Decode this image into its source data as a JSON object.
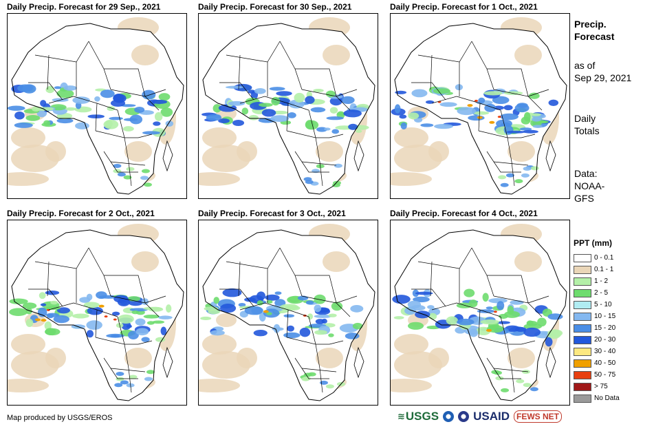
{
  "panels": [
    {
      "title": "Daily Precip. Forecast for 29 Sep., 2021",
      "variant": 0
    },
    {
      "title": "Daily Precip. Forecast for 30 Sep., 2021",
      "variant": 1
    },
    {
      "title": "Daily Precip. Forecast for 1 Oct., 2021",
      "variant": 2
    },
    {
      "title": "Daily Precip. Forecast for 2 Oct., 2021",
      "variant": 3
    },
    {
      "title": "Daily Precip. Forecast for 3 Oct., 2021",
      "variant": 4
    },
    {
      "title": "Daily Precip. Forecast for 4 Oct., 2021",
      "variant": 5
    }
  ],
  "sidebar": {
    "heading_line1": "Precip.",
    "heading_line2": "Forecast",
    "asof_line1": "as of",
    "asof_line2": "Sep 29, 2021",
    "totals_line1": "Daily",
    "totals_line2": "Totals",
    "data_line1": "Data:",
    "data_line2": "NOAA-",
    "data_line3": "GFS"
  },
  "legend": {
    "title": "PPT (mm)",
    "items": [
      {
        "label": "0 - 0.1",
        "color": "#ffffff"
      },
      {
        "label": "0.1 - 1",
        "color": "#ead6b8"
      },
      {
        "label": "1 - 2",
        "color": "#b4f0a8"
      },
      {
        "label": "2 - 5",
        "color": "#6edc6e"
      },
      {
        "label": "5 - 10",
        "color": "#b0ecf2"
      },
      {
        "label": "10 - 15",
        "color": "#84b8f0"
      },
      {
        "label": "15 - 20",
        "color": "#4a8ee6"
      },
      {
        "label": "20 - 30",
        "color": "#2258dc"
      },
      {
        "label": "30 - 40",
        "color": "#fce880"
      },
      {
        "label": "40 - 50",
        "color": "#f0a000"
      },
      {
        "label": "50 - 75",
        "color": "#e84010"
      },
      {
        "label": "> 75",
        "color": "#a01818"
      },
      {
        "label": "No Data",
        "color": "#9a9a9a"
      }
    ]
  },
  "footer": {
    "credit": "Map produced by USGS/EROS",
    "logo_usgs": "USGS",
    "logo_usaid": "USAID",
    "logo_fews": "FEWS NET"
  },
  "colors": {
    "land_dry": "#ead6b8",
    "light": "#b4f0a8",
    "moderate": "#6edc6e",
    "blue_light": "#84b8f0",
    "blue_mid": "#4a8ee6",
    "blue_dark": "#2258dc",
    "orange": "#f0a000",
    "red": "#e84010"
  }
}
